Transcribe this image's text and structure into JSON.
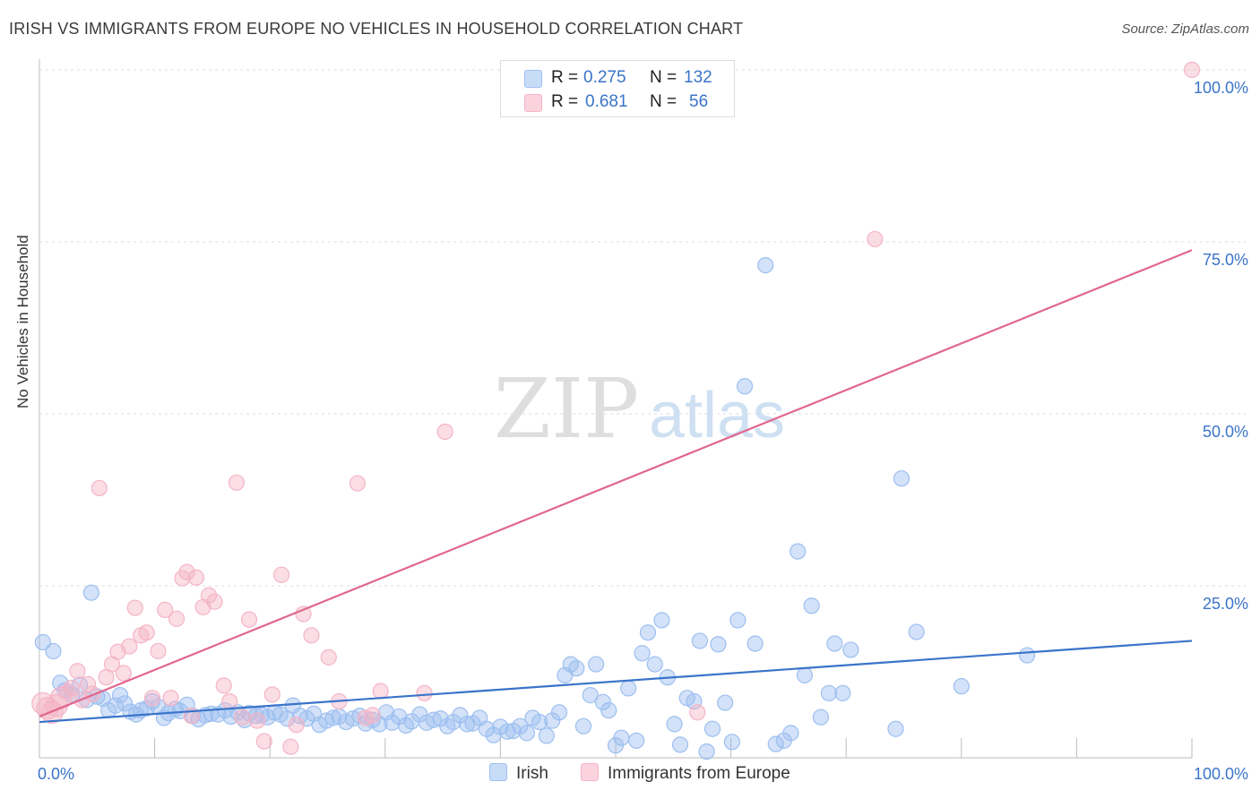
{
  "header": {
    "title": "IRISH VS IMMIGRANTS FROM EUROPE NO VEHICLES IN HOUSEHOLD CORRELATION CHART",
    "source": "Source: ZipAtlas.com"
  },
  "watermark": {
    "zip": "ZIP",
    "atlas": "atlas"
  },
  "legend": {
    "rows": [
      {
        "r_label": "R =",
        "r_value": "0.275",
        "n_label": "N =",
        "n_value": "132",
        "color": "#9dbff0"
      },
      {
        "r_label": "R =",
        "r_value": "0.681",
        "n_label": "N =",
        "n_value": "56",
        "color": "#f5b4c6"
      }
    ]
  },
  "bottom_legend": {
    "irish": "Irish",
    "immigrants": "Immigrants from Europe"
  },
  "chart_data": {
    "type": "scatter",
    "title": "IRISH VS IMMIGRANTS FROM EUROPE NO VEHICLES IN HOUSEHOLD CORRELATION CHART",
    "xlabel": "",
    "ylabel": "No Vehicles in Household",
    "xlim": [
      0,
      100
    ],
    "ylim": [
      0,
      100
    ],
    "x_tick_labels": [
      "0.0%",
      "100.0%"
    ],
    "y_tick_labels": [
      "100.0%",
      "75.0%",
      "50.0%",
      "25.0%"
    ],
    "y_tick_values": [
      100,
      75,
      50,
      25
    ],
    "grid": true,
    "series": [
      {
        "name": "Irish",
        "color": "#3a74c9",
        "fill": "#9dbff0",
        "trend": {
          "x": [
            0,
            100
          ],
          "y": [
            5.2,
            17.0
          ]
        },
        "points": [
          [
            0.3,
            16.8
          ],
          [
            1.2,
            15.5
          ],
          [
            1.8,
            10.9
          ],
          [
            2.2,
            9.8
          ],
          [
            2.8,
            9.2
          ],
          [
            3.5,
            10.6
          ],
          [
            4.1,
            8.4
          ],
          [
            4.5,
            24.0
          ],
          [
            5.0,
            8.9
          ],
          [
            5.5,
            8.6
          ],
          [
            6.0,
            6.9
          ],
          [
            6.6,
            7.6
          ],
          [
            7.0,
            9.1
          ],
          [
            7.4,
            7.9
          ],
          [
            7.9,
            6.7
          ],
          [
            8.4,
            6.3
          ],
          [
            8.8,
            6.9
          ],
          [
            9.3,
            7.2
          ],
          [
            9.8,
            8.2
          ],
          [
            10.3,
            7.4
          ],
          [
            10.8,
            5.8
          ],
          [
            11.2,
            6.5
          ],
          [
            11.8,
            7.1
          ],
          [
            12.2,
            6.8
          ],
          [
            12.8,
            7.7
          ],
          [
            13.3,
            6.1
          ],
          [
            13.8,
            5.6
          ],
          [
            14.4,
            6.2
          ],
          [
            14.9,
            6.4
          ],
          [
            15.5,
            6.3
          ],
          [
            16.1,
            6.9
          ],
          [
            16.6,
            6.0
          ],
          [
            17.2,
            6.6
          ],
          [
            17.8,
            5.5
          ],
          [
            18.2,
            6.5
          ],
          [
            18.8,
            6.1
          ],
          [
            19.3,
            6.2
          ],
          [
            19.8,
            5.9
          ],
          [
            20.4,
            6.6
          ],
          [
            20.9,
            6.3
          ],
          [
            21.5,
            5.7
          ],
          [
            22.0,
            7.6
          ],
          [
            22.6,
            6.1
          ],
          [
            23.2,
            5.7
          ],
          [
            23.8,
            6.4
          ],
          [
            24.3,
            4.8
          ],
          [
            24.9,
            5.4
          ],
          [
            25.5,
            5.8
          ],
          [
            26.0,
            6.0
          ],
          [
            26.6,
            5.2
          ],
          [
            27.2,
            5.7
          ],
          [
            27.8,
            6.1
          ],
          [
            28.3,
            5.0
          ],
          [
            28.9,
            5.5
          ],
          [
            29.5,
            4.9
          ],
          [
            30.1,
            6.6
          ],
          [
            30.6,
            5.1
          ],
          [
            31.2,
            6.0
          ],
          [
            31.8,
            4.7
          ],
          [
            32.3,
            5.3
          ],
          [
            33.0,
            6.3
          ],
          [
            33.6,
            5.1
          ],
          [
            34.2,
            5.5
          ],
          [
            34.8,
            5.7
          ],
          [
            35.4,
            4.6
          ],
          [
            35.9,
            5.2
          ],
          [
            36.5,
            6.2
          ],
          [
            37.1,
            4.9
          ],
          [
            37.6,
            5.0
          ],
          [
            38.2,
            5.8
          ],
          [
            38.8,
            4.2
          ],
          [
            39.4,
            3.3
          ],
          [
            40.0,
            4.5
          ],
          [
            40.6,
            3.8
          ],
          [
            41.1,
            3.9
          ],
          [
            41.7,
            4.6
          ],
          [
            42.3,
            3.6
          ],
          [
            42.8,
            5.8
          ],
          [
            43.4,
            5.2
          ],
          [
            44.0,
            3.2
          ],
          [
            44.5,
            5.4
          ],
          [
            45.1,
            6.6
          ],
          [
            45.6,
            12.0
          ],
          [
            46.1,
            13.6
          ],
          [
            46.6,
            13.0
          ],
          [
            47.2,
            4.6
          ],
          [
            47.8,
            9.1
          ],
          [
            48.3,
            13.6
          ],
          [
            48.9,
            8.1
          ],
          [
            49.4,
            6.9
          ],
          [
            50.0,
            1.8
          ],
          [
            50.5,
            2.9
          ],
          [
            51.1,
            10.1
          ],
          [
            51.8,
            2.5
          ],
          [
            52.3,
            15.2
          ],
          [
            52.8,
            18.2
          ],
          [
            53.4,
            13.6
          ],
          [
            54.0,
            20.0
          ],
          [
            54.5,
            11.7
          ],
          [
            55.1,
            4.9
          ],
          [
            55.6,
            1.9
          ],
          [
            56.2,
            8.7
          ],
          [
            56.8,
            8.2
          ],
          [
            57.3,
            17.0
          ],
          [
            57.9,
            0.9
          ],
          [
            58.4,
            4.2
          ],
          [
            58.9,
            16.5
          ],
          [
            59.5,
            8.0
          ],
          [
            60.1,
            2.3
          ],
          [
            60.6,
            20.0
          ],
          [
            61.2,
            54.0
          ],
          [
            62.1,
            16.6
          ],
          [
            63.0,
            71.6
          ],
          [
            63.9,
            2.0
          ],
          [
            64.6,
            2.5
          ],
          [
            65.2,
            3.6
          ],
          [
            65.8,
            30.0
          ],
          [
            66.4,
            12.0
          ],
          [
            67.0,
            22.1
          ],
          [
            67.8,
            5.9
          ],
          [
            68.5,
            9.4
          ],
          [
            69.0,
            16.6
          ],
          [
            69.7,
            9.4
          ],
          [
            70.4,
            15.7
          ],
          [
            74.3,
            4.2
          ],
          [
            74.8,
            40.6
          ],
          [
            76.1,
            18.3
          ],
          [
            80.0,
            10.4
          ],
          [
            85.7,
            14.9
          ]
        ]
      },
      {
        "name": "Immigrants from Europe",
        "color": "#e0678f",
        "fill": "#f5b4c6",
        "trend": {
          "x": [
            0,
            100
          ],
          "y": [
            6.0,
            73.8
          ]
        },
        "points": [
          [
            0.3,
            7.9
          ],
          [
            0.7,
            7.2
          ],
          [
            1.1,
            6.6
          ],
          [
            1.5,
            7.6
          ],
          [
            1.9,
            8.7
          ],
          [
            2.4,
            9.6
          ],
          [
            2.8,
            10.2
          ],
          [
            3.3,
            12.6
          ],
          [
            3.7,
            8.4
          ],
          [
            4.2,
            10.7
          ],
          [
            4.6,
            9.3
          ],
          [
            5.2,
            39.2
          ],
          [
            5.8,
            11.7
          ],
          [
            6.3,
            13.6
          ],
          [
            6.8,
            15.4
          ],
          [
            7.3,
            12.3
          ],
          [
            7.8,
            16.2
          ],
          [
            8.3,
            21.8
          ],
          [
            8.8,
            17.8
          ],
          [
            9.3,
            18.2
          ],
          [
            9.8,
            8.7
          ],
          [
            10.3,
            15.5
          ],
          [
            10.9,
            21.5
          ],
          [
            11.4,
            8.7
          ],
          [
            11.9,
            20.2
          ],
          [
            12.4,
            26.1
          ],
          [
            12.8,
            27.0
          ],
          [
            13.2,
            6.1
          ],
          [
            13.6,
            26.2
          ],
          [
            14.2,
            21.9
          ],
          [
            14.7,
            23.6
          ],
          [
            15.2,
            22.7
          ],
          [
            16.0,
            10.5
          ],
          [
            16.5,
            8.2
          ],
          [
            17.1,
            40.0
          ],
          [
            17.6,
            5.9
          ],
          [
            18.2,
            20.1
          ],
          [
            18.9,
            5.4
          ],
          [
            19.5,
            2.4
          ],
          [
            20.2,
            9.2
          ],
          [
            21.0,
            26.6
          ],
          [
            21.8,
            1.6
          ],
          [
            22.3,
            4.8
          ],
          [
            22.9,
            20.9
          ],
          [
            23.6,
            17.8
          ],
          [
            25.1,
            14.6
          ],
          [
            26.0,
            8.2
          ],
          [
            27.6,
            39.9
          ],
          [
            28.3,
            5.8
          ],
          [
            28.9,
            6.2
          ],
          [
            29.6,
            9.7
          ],
          [
            33.4,
            9.4
          ],
          [
            35.2,
            47.4
          ],
          [
            57.1,
            6.6
          ],
          [
            72.5,
            75.4
          ],
          [
            100.0,
            100.0
          ]
        ]
      }
    ]
  }
}
